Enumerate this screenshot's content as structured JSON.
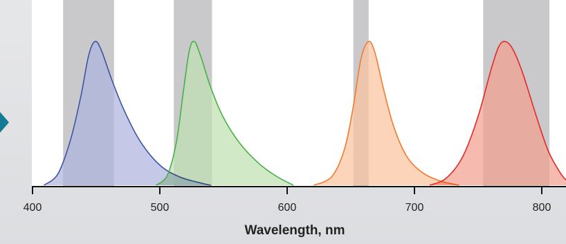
{
  "chart_data": {
    "type": "area",
    "xlabel": "Wavelength, nm",
    "xlim": [
      400,
      820
    ],
    "x_ticks": [
      400,
      500,
      600,
      700,
      800
    ],
    "y_axis": "none",
    "grid": false,
    "filter_bands_nm": [
      [
        424,
        464
      ],
      [
        511,
        541
      ],
      [
        652,
        664
      ],
      [
        754,
        806
      ]
    ],
    "band_color": "#c9c9cb",
    "series": [
      {
        "peak_nm": 449,
        "stroke": "#3c55a3",
        "fill": "#aeb4de",
        "points": [
          [
            409,
            0
          ],
          [
            420,
            0.08
          ],
          [
            430,
            0.32
          ],
          [
            438,
            0.62
          ],
          [
            444,
            0.9
          ],
          [
            449,
            1
          ],
          [
            454,
            0.94
          ],
          [
            462,
            0.74
          ],
          [
            472,
            0.52
          ],
          [
            485,
            0.3
          ],
          [
            500,
            0.14
          ],
          [
            515,
            0.06
          ],
          [
            530,
            0.02
          ],
          [
            540,
            0
          ]
        ]
      },
      {
        "peak_nm": 527,
        "stroke": "#46b046",
        "fill": "#bfe0b2",
        "points": [
          [
            497,
            0
          ],
          [
            506,
            0.07
          ],
          [
            513,
            0.3
          ],
          [
            518,
            0.62
          ],
          [
            523,
            0.93
          ],
          [
            527,
            1
          ],
          [
            532,
            0.9
          ],
          [
            540,
            0.68
          ],
          [
            550,
            0.47
          ],
          [
            563,
            0.29
          ],
          [
            578,
            0.15
          ],
          [
            592,
            0.06
          ],
          [
            605,
            0
          ]
        ]
      },
      {
        "peak_nm": 664,
        "stroke": "#f07a30",
        "fill": "#fbc3a0",
        "points": [
          [
            621,
            0
          ],
          [
            635,
            0.06
          ],
          [
            645,
            0.25
          ],
          [
            652,
            0.55
          ],
          [
            658,
            0.88
          ],
          [
            664,
            1
          ],
          [
            669,
            0.92
          ],
          [
            676,
            0.66
          ],
          [
            684,
            0.4
          ],
          [
            694,
            0.2
          ],
          [
            706,
            0.09
          ],
          [
            720,
            0.03
          ],
          [
            735,
            0
          ]
        ]
      },
      {
        "peak_nm": 771,
        "stroke": "#e42727",
        "fill": "#f4a08f",
        "points": [
          [
            712,
            0
          ],
          [
            725,
            0.05
          ],
          [
            738,
            0.2
          ],
          [
            750,
            0.48
          ],
          [
            760,
            0.8
          ],
          [
            766,
            0.96
          ],
          [
            771,
            1
          ],
          [
            777,
            0.95
          ],
          [
            785,
            0.78
          ],
          [
            795,
            0.5
          ],
          [
            805,
            0.24
          ],
          [
            815,
            0.08
          ],
          [
            820,
            0.03
          ]
        ]
      }
    ]
  }
}
